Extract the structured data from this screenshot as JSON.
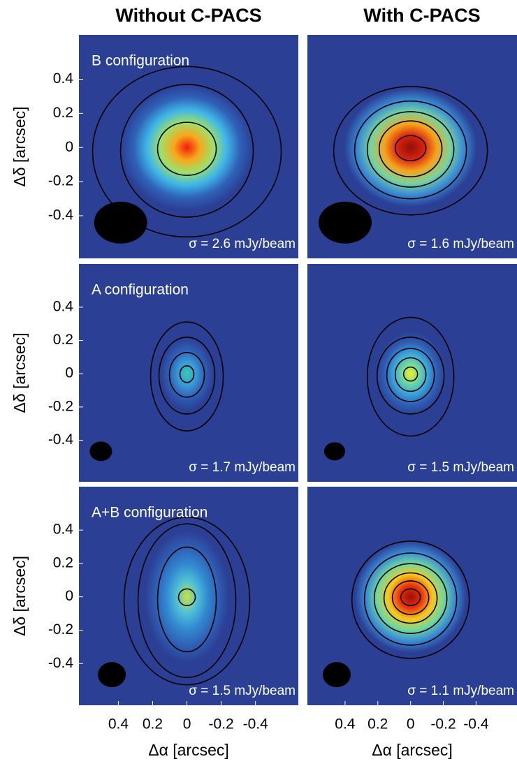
{
  "column_titles": [
    "Without C-PACS",
    "With C-PACS"
  ],
  "chart_data": [
    {
      "type": "image",
      "title": "B configuration",
      "annotation": "σ = 2.6 mJy/beam",
      "ylabel": "Δδ [arcsec]",
      "xlim": [
        0.63,
        -0.65
      ],
      "ylim": [
        -0.65,
        0.66
      ],
      "yticks": [
        0.4,
        0.2,
        0,
        -0.2,
        -0.4
      ]
    },
    {
      "type": "image",
      "annotation": "σ = 1.6 mJy/beam",
      "xlim": [
        0.63,
        -0.65
      ],
      "ylim": [
        -0.65,
        0.66
      ]
    },
    {
      "type": "image",
      "title": "A configuration",
      "annotation": "σ = 1.7 mJy/beam",
      "ylabel": "Δδ [arcsec]",
      "xlim": [
        0.63,
        -0.65
      ],
      "ylim": [
        -0.65,
        0.66
      ],
      "yticks": [
        0.4,
        0.2,
        0,
        -0.2,
        -0.4
      ]
    },
    {
      "type": "image",
      "annotation": "σ = 1.5 mJy/beam",
      "xlim": [
        0.63,
        -0.65
      ],
      "ylim": [
        -0.65,
        0.66
      ]
    },
    {
      "type": "image",
      "title": "A+B configuration",
      "annotation": "σ = 1.5 mJy/beam",
      "ylabel": "Δδ [arcsec]",
      "xlabel": "Δα [arcsec]",
      "xlim": [
        0.63,
        -0.65
      ],
      "ylim": [
        -0.65,
        0.66
      ],
      "yticks": [
        0.4,
        0.2,
        0,
        -0.2,
        -0.4
      ],
      "xticks": [
        0.4,
        0.2,
        0,
        -0.2,
        -0.4
      ]
    },
    {
      "type": "image",
      "annotation": "σ = 1.1 mJy/beam",
      "xlabel": "Δα [arcsec]",
      "xlim": [
        0.63,
        -0.65
      ],
      "ylim": [
        -0.65,
        0.66
      ],
      "xticks": [
        0.4,
        0.2,
        0,
        -0.2,
        -0.4
      ]
    }
  ]
}
